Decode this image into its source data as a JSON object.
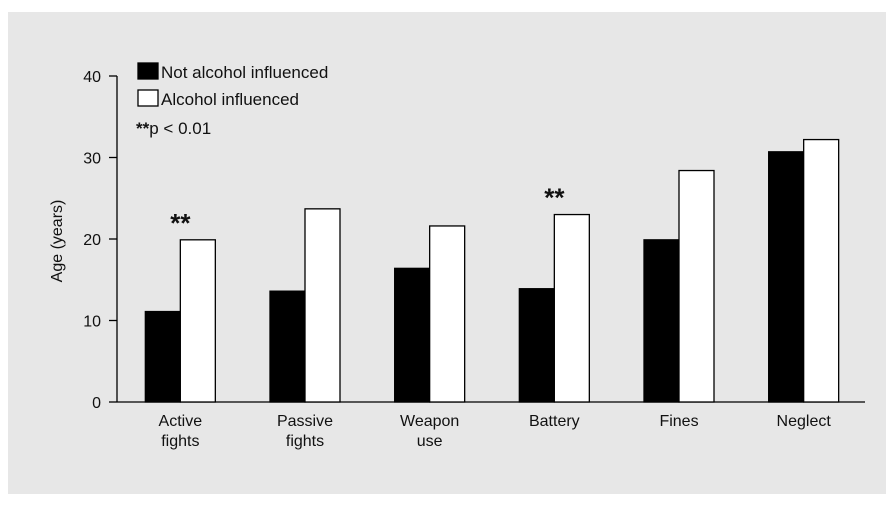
{
  "chart_data": {
    "type": "bar",
    "categories": [
      [
        "Active",
        "fights"
      ],
      [
        "Passive",
        "fights"
      ],
      [
        "Weapon",
        "use"
      ],
      [
        "Battery"
      ],
      [
        "Fines"
      ],
      [
        "Neglect"
      ]
    ],
    "series": [
      {
        "name": "Not alcohol influenced",
        "values": [
          11.1,
          13.6,
          16.4,
          13.9,
          19.9,
          30.7
        ],
        "color": "#000000"
      },
      {
        "name": "Alcohol influenced",
        "values": [
          19.9,
          23.7,
          21.6,
          23.0,
          28.4,
          32.2
        ],
        "color": "#ffffff"
      }
    ],
    "significance_marker": "**",
    "significant_categories": [
      0,
      3
    ],
    "legend_note": {
      "marker": "**",
      "text": "p < 0.01"
    },
    "ylabel": "Age (years)",
    "ylim": [
      0,
      40
    ],
    "yticks": [
      0,
      10,
      20,
      30,
      40
    ],
    "legend_position": "top-left",
    "grid": false
  }
}
